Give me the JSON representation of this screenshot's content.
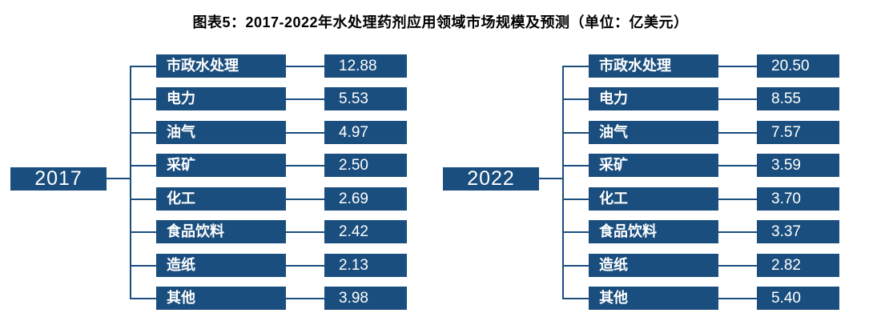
{
  "title": "图表5：2017-2022年水处理药剂应用领域市场规模及预测（单位：亿美元）",
  "colors": {
    "box_fill": "#1A4E7E",
    "line": "#1A4E7E",
    "box_text": "#FFFFFF",
    "title_text": "#000000",
    "background": "#FFFFFF"
  },
  "chart_data": {
    "type": "table",
    "variant": "tree-diagram",
    "title": "图表5：2017-2022年水处理药剂应用领域市场规模及预测",
    "unit": "亿美元",
    "legend_position": "none",
    "grid": false,
    "categories": [
      "市政水处理",
      "电力",
      "油气",
      "采矿",
      "化工",
      "食品饮料",
      "造纸",
      "其他"
    ],
    "series": [
      {
        "name": "2017",
        "values": [
          12.88,
          5.53,
          4.97,
          2.5,
          2.69,
          2.42,
          2.13,
          3.98
        ],
        "value_labels": [
          "12.88",
          "5.53",
          "4.97",
          "2.50",
          "2.69",
          "2.42",
          "2.13",
          "3.98"
        ]
      },
      {
        "name": "2022",
        "values": [
          20.5,
          8.55,
          7.57,
          3.59,
          3.7,
          3.37,
          2.82,
          5.4
        ],
        "value_labels": [
          "20.50",
          "8.55",
          "7.57",
          "3.59",
          "3.70",
          "3.37",
          "2.82",
          "5.40"
        ]
      }
    ]
  }
}
